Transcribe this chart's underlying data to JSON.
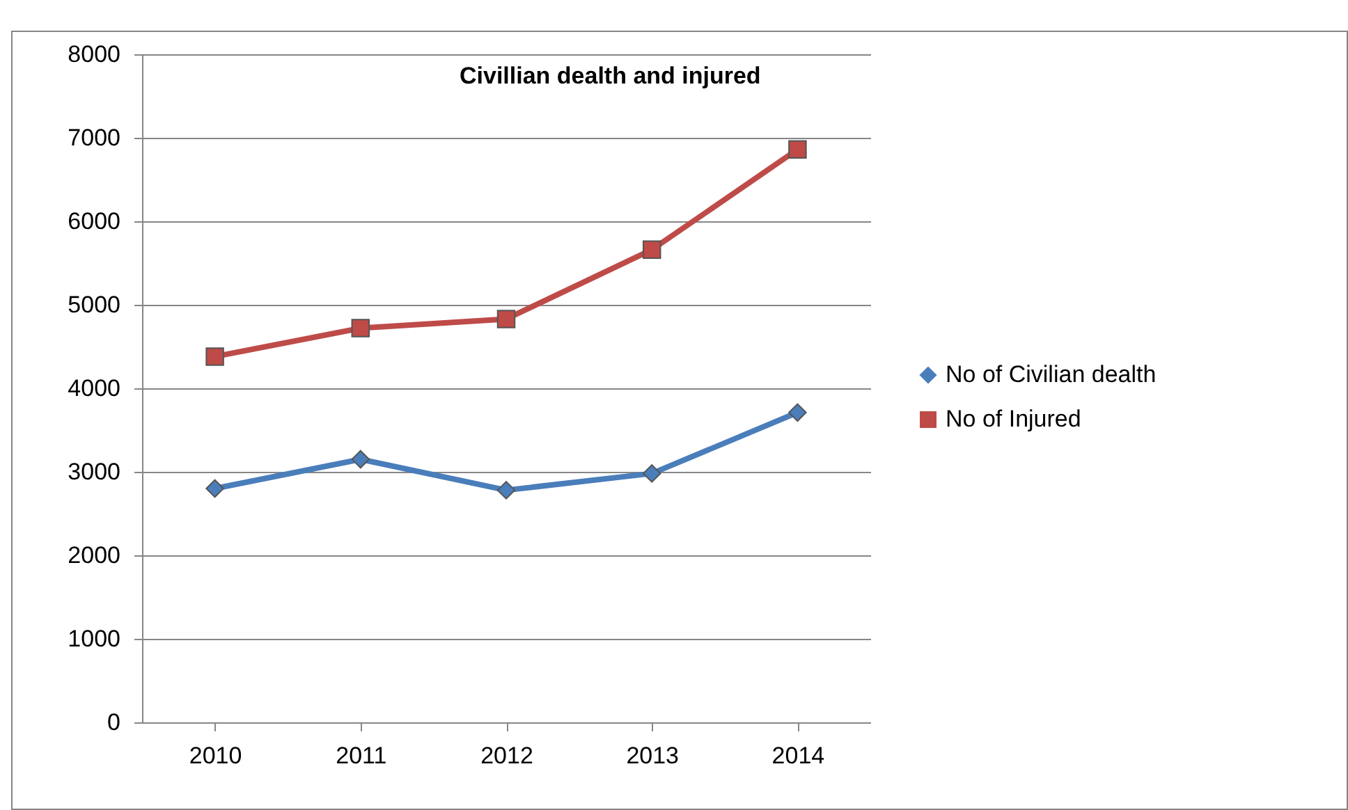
{
  "chart_data": {
    "type": "line",
    "title": "Civillian dealth and injured",
    "categories": [
      "2010",
      "2011",
      "2012",
      "2013",
      "2014"
    ],
    "series": [
      {
        "name": "No of Civilian dealth",
        "color": "#4a7ebb",
        "marker": "diamond",
        "values": [
          2800,
          3150,
          2780,
          2980,
          3710
        ]
      },
      {
        "name": "No of Injured",
        "color": "#be4b48",
        "marker": "square",
        "values": [
          4380,
          4720,
          4830,
          5660,
          6860
        ]
      }
    ],
    "ylim": [
      0,
      8000
    ],
    "yticks": [
      0,
      1000,
      2000,
      3000,
      4000,
      5000,
      6000,
      7000,
      8000
    ],
    "grid": "y",
    "legend": "right"
  }
}
